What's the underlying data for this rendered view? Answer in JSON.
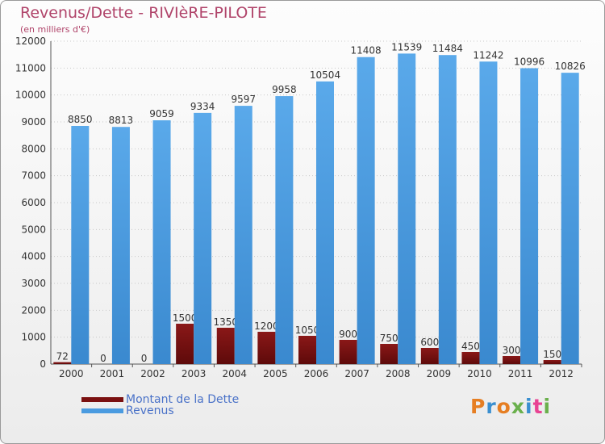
{
  "header": {
    "title": "Revenus/Dette - RIVIèRE-PILOTE",
    "unit": "(en milliers d'€)"
  },
  "chart_data": {
    "type": "bar",
    "title": "Revenus/Dette - RIVIèRE-PILOTE",
    "ylabel": "(en milliers d'€)",
    "xlabel": "",
    "ylim": [
      0,
      12000
    ],
    "yticks": [
      0,
      1000,
      2000,
      3000,
      4000,
      5000,
      6000,
      7000,
      8000,
      9000,
      10000,
      11000,
      12000
    ],
    "grid": "horizontal, dotted",
    "legend_position": "bottom-left",
    "categories": [
      "2000",
      "2001",
      "2002",
      "2003",
      "2004",
      "2005",
      "2006",
      "2007",
      "2008",
      "2009",
      "2010",
      "2011",
      "2012"
    ],
    "series": [
      {
        "name": "Montant de la Dette",
        "color": "#7a1010",
        "values": [
          72,
          0,
          0,
          1500,
          1350,
          1200,
          1050,
          900,
          750,
          600,
          450,
          300,
          150
        ]
      },
      {
        "name": "Revenus",
        "color": "#4a9be0",
        "values": [
          8850,
          8813,
          9059,
          9334,
          9597,
          9958,
          10504,
          11408,
          11539,
          11484,
          11242,
          10996,
          10826
        ]
      }
    ]
  },
  "logo": {
    "letters": [
      "P",
      "r",
      "o",
      "x",
      "i",
      "t",
      "i"
    ],
    "colors": [
      "#e67e22",
      "#3a8fd0",
      "#e67e22",
      "#6ab04c",
      "#3a8fd0",
      "#e84393",
      "#6ab04c"
    ]
  }
}
